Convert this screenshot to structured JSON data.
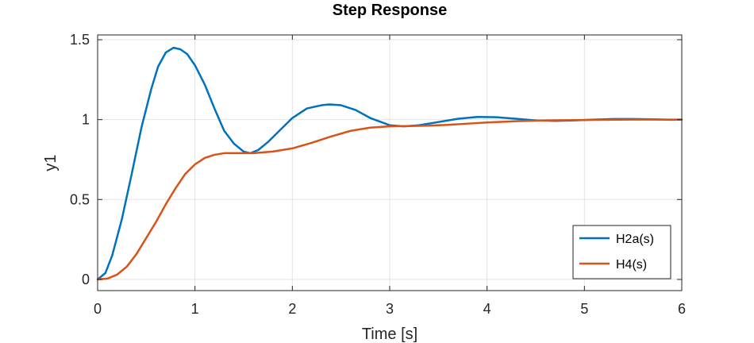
{
  "chart_data": {
    "type": "line",
    "title": "Step Response",
    "xlabel": "Time [s]",
    "ylabel": "y1",
    "xlim": [
      0,
      6
    ],
    "ylim": [
      -0.07,
      1.53
    ],
    "xticks": [
      0,
      1,
      2,
      3,
      4,
      5,
      6
    ],
    "yticks": [
      0,
      0.5,
      1,
      1.5
    ],
    "ytick_labels": [
      "0",
      "0.5",
      "1",
      "1.5"
    ],
    "grid": true,
    "legend_position": "bottom-right",
    "series": [
      {
        "name": "H2a(s)",
        "color": "#0072BD",
        "x": [
          0,
          0.08,
          0.15,
          0.25,
          0.35,
          0.45,
          0.55,
          0.62,
          0.7,
          0.78,
          0.85,
          0.92,
          1.0,
          1.1,
          1.2,
          1.3,
          1.4,
          1.5,
          1.57,
          1.65,
          1.75,
          1.85,
          2.0,
          2.15,
          2.3,
          2.38,
          2.5,
          2.65,
          2.8,
          3.0,
          3.15,
          3.3,
          3.5,
          3.7,
          3.9,
          4.1,
          4.3,
          4.5,
          4.7,
          4.9,
          5.1,
          5.3,
          5.5,
          5.7,
          5.9,
          6.0
        ],
        "y": [
          0,
          0.04,
          0.15,
          0.38,
          0.66,
          0.95,
          1.19,
          1.33,
          1.42,
          1.45,
          1.44,
          1.41,
          1.34,
          1.22,
          1.07,
          0.93,
          0.85,
          0.8,
          0.79,
          0.81,
          0.86,
          0.92,
          1.01,
          1.07,
          1.09,
          1.095,
          1.09,
          1.06,
          1.01,
          0.965,
          0.958,
          0.965,
          0.985,
          1.005,
          1.017,
          1.015,
          1.005,
          0.995,
          0.992,
          0.995,
          1.0,
          1.004,
          1.004,
          1.002,
          0.999,
          1.0
        ]
      },
      {
        "name": "H4(s)",
        "color": "#D95319",
        "x": [
          0,
          0.1,
          0.2,
          0.3,
          0.4,
          0.5,
          0.6,
          0.7,
          0.8,
          0.9,
          1.0,
          1.1,
          1.2,
          1.3,
          1.4,
          1.5,
          1.6,
          1.7,
          1.8,
          2.0,
          2.2,
          2.4,
          2.6,
          2.8,
          3.0,
          3.2,
          3.4,
          3.6,
          3.8,
          4.0,
          4.3,
          4.6,
          4.9,
          5.2,
          5.5,
          5.8,
          6.0
        ],
        "y": [
          0,
          0.005,
          0.03,
          0.08,
          0.16,
          0.26,
          0.36,
          0.47,
          0.57,
          0.66,
          0.72,
          0.76,
          0.78,
          0.79,
          0.79,
          0.79,
          0.79,
          0.795,
          0.8,
          0.82,
          0.855,
          0.895,
          0.93,
          0.95,
          0.958,
          0.96,
          0.962,
          0.967,
          0.975,
          0.982,
          0.99,
          0.995,
          0.997,
          0.999,
          1.0,
          1.0,
          1.0
        ]
      }
    ]
  }
}
